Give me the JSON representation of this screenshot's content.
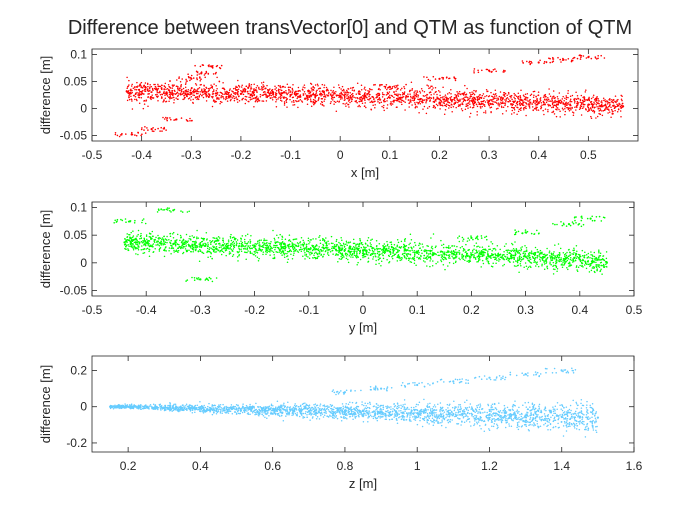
{
  "figure": {
    "title": "Difference between transVector[0] and QTM as function of QTM"
  },
  "chart_data": [
    {
      "type": "scatter",
      "xlabel": "x [m]",
      "ylabel": "difference [m]",
      "xlim": [
        -0.5,
        0.6
      ],
      "ylim": [
        -0.06,
        0.11
      ],
      "xticks": [
        -0.5,
        -0.4,
        -0.3,
        -0.2,
        -0.1,
        0,
        0.1,
        0.2,
        0.3,
        0.4,
        0.5
      ],
      "yticks": [
        -0.05,
        0,
        0.05,
        0.1
      ],
      "color": "#ff0000",
      "grid": false,
      "series": [
        {
          "x": [
            -0.43,
            -0.4,
            -0.35,
            -0.3,
            -0.25,
            -0.2,
            -0.15,
            -0.1,
            -0.05,
            0.0,
            0.05,
            0.1,
            0.15,
            0.2,
            0.25,
            0.3,
            0.35,
            0.4,
            0.45,
            0.5,
            0.55,
            0.57,
            -0.42,
            -0.38,
            -0.33,
            -0.3,
            -0.28,
            -0.26,
            0.1,
            0.2,
            0.3,
            0.4,
            0.45,
            0.5
          ],
          "y": [
            0.032,
            0.031,
            0.03,
            0.029,
            0.028,
            0.027,
            0.026,
            0.025,
            0.024,
            0.023,
            0.022,
            0.02,
            0.019,
            0.017,
            0.016,
            0.014,
            0.012,
            0.011,
            0.009,
            0.007,
            0.005,
            0.004,
            -0.048,
            -0.038,
            -0.02,
            0.055,
            0.065,
            0.078,
            0.04,
            0.055,
            0.07,
            0.085,
            0.09,
            0.095
          ]
        }
      ]
    },
    {
      "type": "scatter",
      "xlabel": "y [m]",
      "ylabel": "difference [m]",
      "xlim": [
        -0.5,
        0.5
      ],
      "ylim": [
        -0.06,
        0.11
      ],
      "xticks": [
        -0.5,
        -0.4,
        -0.3,
        -0.2,
        -0.1,
        0,
        0.1,
        0.2,
        0.3,
        0.4,
        0.5
      ],
      "yticks": [
        -0.05,
        0,
        0.05,
        0.1
      ],
      "color": "#00ff00",
      "grid": false,
      "series": [
        {
          "x": [
            -0.44,
            -0.4,
            -0.35,
            -0.3,
            -0.25,
            -0.2,
            -0.15,
            -0.1,
            -0.05,
            0.0,
            0.05,
            0.1,
            0.15,
            0.2,
            0.25,
            0.3,
            0.35,
            0.4,
            0.45,
            -0.43,
            -0.35,
            -0.3,
            0.2,
            0.3,
            0.38,
            0.42
          ],
          "y": [
            0.037,
            0.036,
            0.034,
            0.032,
            0.03,
            0.029,
            0.027,
            0.025,
            0.024,
            0.022,
            0.02,
            0.018,
            0.016,
            0.015,
            0.013,
            0.011,
            0.009,
            0.006,
            0.0,
            0.075,
            0.095,
            -0.03,
            0.045,
            0.055,
            0.07,
            0.08
          ]
        }
      ]
    },
    {
      "type": "scatter",
      "xlabel": "z [m]",
      "ylabel": "difference [m]",
      "xlim": [
        0.1,
        1.6
      ],
      "ylim": [
        -0.25,
        0.28
      ],
      "xticks": [
        0.2,
        0.4,
        0.6,
        0.8,
        1,
        1.2,
        1.4,
        1.6
      ],
      "yticks": [
        -0.2,
        0,
        0.2
      ],
      "color": "#66ccff",
      "grid": false,
      "series": [
        {
          "x": [
            0.15,
            0.2,
            0.3,
            0.4,
            0.5,
            0.6,
            0.7,
            0.8,
            0.9,
            1.0,
            1.1,
            1.2,
            1.3,
            1.4,
            1.45,
            1.5,
            0.8,
            0.9,
            1.0,
            1.1,
            1.2,
            1.3,
            1.4
          ],
          "y": [
            0.0,
            0.0,
            -0.005,
            -0.01,
            -0.015,
            -0.02,
            -0.025,
            -0.03,
            -0.03,
            -0.035,
            -0.04,
            -0.045,
            -0.05,
            -0.055,
            -0.06,
            -0.06,
            0.08,
            0.1,
            0.12,
            0.14,
            0.16,
            0.18,
            0.2
          ]
        }
      ]
    }
  ]
}
